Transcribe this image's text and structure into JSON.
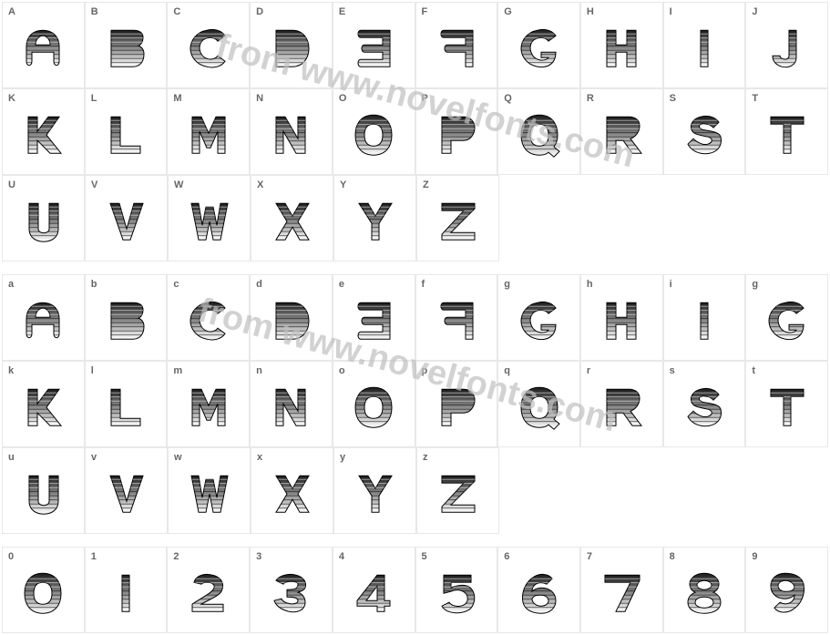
{
  "watermark": "from www.novelfonts.com",
  "rows": [
    {
      "labels": [
        "A",
        "B",
        "C",
        "D",
        "E",
        "F",
        "G",
        "H",
        "I",
        "J"
      ],
      "full": true
    },
    {
      "labels": [
        "K",
        "L",
        "M",
        "N",
        "O",
        "P",
        "Q",
        "R",
        "S",
        "T"
      ],
      "full": true
    },
    {
      "labels": [
        "U",
        "V",
        "W",
        "X",
        "Y",
        "Z"
      ],
      "full": false
    },
    {
      "gap": true
    },
    {
      "labels": [
        "a",
        "b",
        "c",
        "d",
        "e",
        "f",
        "g",
        "h",
        "i",
        "g"
      ],
      "full": true
    },
    {
      "labels": [
        "k",
        "l",
        "m",
        "n",
        "o",
        "p",
        "q",
        "r",
        "s",
        "t"
      ],
      "full": true
    },
    {
      "labels": [
        "u",
        "v",
        "w",
        "x",
        "y",
        "z"
      ],
      "full": false
    },
    {
      "gap": true
    },
    {
      "labels": [
        "0",
        "1",
        "2",
        "3",
        "4",
        "5",
        "6",
        "7",
        "8",
        "9"
      ],
      "full": true
    }
  ],
  "glyph_style": {
    "stroke": "#000000",
    "fill_top": "#1a1a1a",
    "fill_bottom": "#ffffff",
    "stripe_count": 8
  }
}
